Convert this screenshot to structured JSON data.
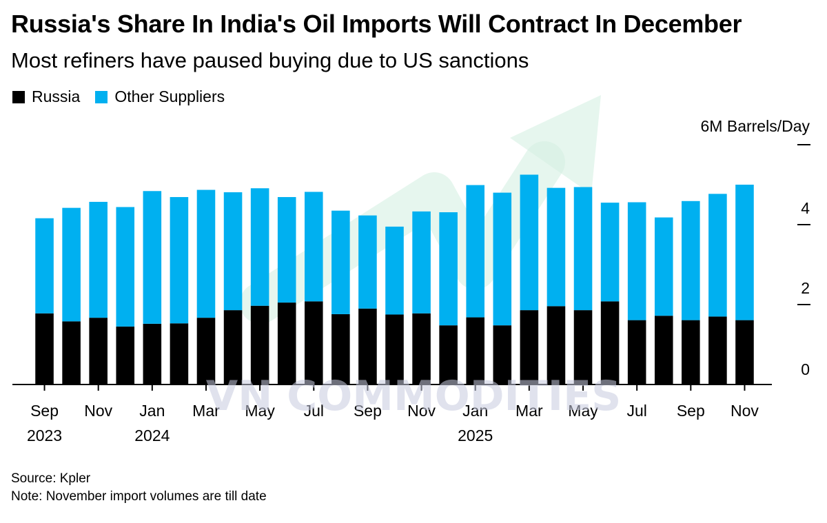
{
  "title": "Russia's Share In India's Oil Imports Will Contract In December",
  "subtitle": "Most refiners have paused buying due to US sanctions",
  "legend": [
    {
      "label": "Russia",
      "color": "#000000"
    },
    {
      "label": "Other Suppliers",
      "color": "#00b0f0"
    }
  ],
  "unit_label": "6M Barrels/Day",
  "watermark": "VN COMMODITIES",
  "source": "Source: Kpler",
  "note": "Note: November import volumes are till date",
  "colors": {
    "russia": "#000000",
    "other": "#00b0f0",
    "arrow": "#d5f0e2"
  },
  "chart_data": {
    "type": "bar",
    "stacked": true,
    "categories": [
      "Sep 2023",
      "Oct 2023",
      "Nov 2023",
      "Dec 2023",
      "Jan 2024",
      "Feb 2024",
      "Mar 2024",
      "Apr 2024",
      "May 2024",
      "Jun 2024",
      "Jul 2024",
      "Aug 2024",
      "Sep 2024",
      "Oct 2024",
      "Nov 2024",
      "Dec 2024",
      "Jan 2025",
      "Feb 2025",
      "Mar 2025",
      "Apr 2025",
      "May 2025",
      "Jun 2025",
      "Jul 2025",
      "Aug 2025",
      "Sep 2025",
      "Oct 2025",
      "Nov 2025"
    ],
    "series": [
      {
        "name": "Russia",
        "values": [
          1.78,
          1.58,
          1.67,
          1.45,
          1.52,
          1.53,
          1.67,
          1.86,
          1.97,
          2.05,
          2.08,
          1.76,
          1.9,
          1.75,
          1.78,
          1.48,
          1.68,
          1.48,
          1.86,
          1.96,
          1.86,
          2.08,
          1.61,
          1.72,
          1.61,
          1.7,
          1.61
        ]
      },
      {
        "name": "Other Suppliers",
        "values": [
          2.38,
          2.84,
          2.9,
          2.99,
          3.32,
          3.16,
          3.2,
          2.95,
          2.94,
          2.64,
          2.74,
          2.59,
          2.33,
          2.2,
          2.55,
          2.83,
          3.31,
          3.32,
          3.39,
          2.96,
          3.08,
          2.47,
          2.95,
          2.46,
          2.98,
          3.07,
          3.39
        ]
      }
    ],
    "ylim": [
      0,
      6
    ],
    "yticks": [
      0,
      2,
      4
    ],
    "ytick_labels": [
      "0",
      "2",
      "4"
    ],
    "x_tick_labels": [
      {
        "index": 0,
        "month": "Sep",
        "year": "2023"
      },
      {
        "index": 2,
        "month": "Nov",
        "year": ""
      },
      {
        "index": 4,
        "month": "Jan",
        "year": "2024"
      },
      {
        "index": 6,
        "month": "Mar",
        "year": ""
      },
      {
        "index": 8,
        "month": "May",
        "year": ""
      },
      {
        "index": 10,
        "month": "Jul",
        "year": ""
      },
      {
        "index": 12,
        "month": "Sep",
        "year": ""
      },
      {
        "index": 14,
        "month": "Nov",
        "year": ""
      },
      {
        "index": 16,
        "month": "Jan",
        "year": "2025"
      },
      {
        "index": 18,
        "month": "Mar",
        "year": ""
      },
      {
        "index": 20,
        "month": "May",
        "year": ""
      },
      {
        "index": 22,
        "month": "Jul",
        "year": ""
      },
      {
        "index": 24,
        "month": "Sep",
        "year": ""
      },
      {
        "index": 26,
        "month": "Nov",
        "year": ""
      }
    ],
    "grid": false,
    "legend_position": "top-left"
  }
}
